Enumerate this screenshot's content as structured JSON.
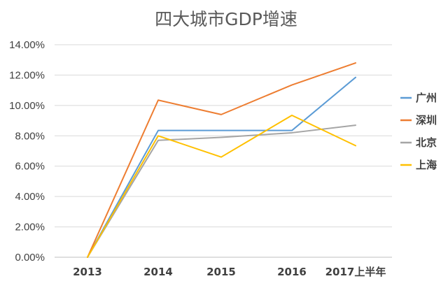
{
  "chart_data": {
    "type": "line",
    "title": "四大城市GDP增速",
    "xlabel": "",
    "ylabel": "",
    "categories": [
      "2013",
      "2014",
      "2015",
      "2016",
      "2017上半年"
    ],
    "ylim": [
      0,
      14
    ],
    "y_ticks": [
      "0.00%",
      "2.00%",
      "4.00%",
      "6.00%",
      "8.00%",
      "10.00%",
      "12.00%",
      "14.00%"
    ],
    "grid": true,
    "legend_position": "right",
    "series": [
      {
        "name": "广州",
        "color": "#5b9bd5",
        "values": [
          0,
          8.35,
          8.35,
          8.35,
          11.85
        ]
      },
      {
        "name": "深圳",
        "color": "#ed7d31",
        "values": [
          0,
          10.35,
          9.4,
          11.35,
          12.8
        ]
      },
      {
        "name": "北京",
        "color": "#a5a5a5",
        "values": [
          0,
          7.7,
          7.9,
          8.2,
          8.7
        ]
      },
      {
        "name": "上海",
        "color": "#ffc000",
        "values": [
          0,
          8.0,
          6.6,
          9.35,
          7.35
        ]
      }
    ]
  }
}
